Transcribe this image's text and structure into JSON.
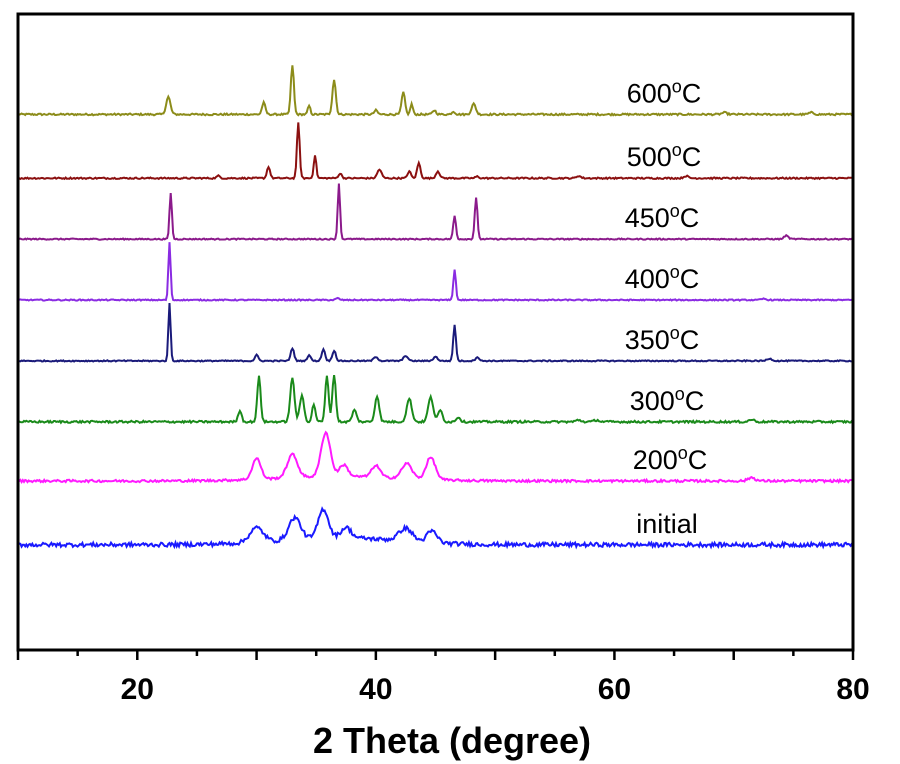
{
  "chart_data": {
    "type": "line",
    "xlabel": "2 Theta (degree)",
    "ylabel": "",
    "xlim": [
      10,
      80
    ],
    "xticks": [
      20,
      40,
      60,
      80
    ],
    "yticks": false,
    "grid": false,
    "legend": "inline labels to the right of each trace",
    "series": [
      {
        "name": "600°C",
        "label_main": "600",
        "label_sup": "o",
        "label_unit": "C",
        "color": "#8c8c1a",
        "offset": 8.2,
        "noise": 0.03,
        "base": 0,
        "bump": 0,
        "peaks": [
          [
            22.6,
            0.3,
            0.25
          ],
          [
            30.6,
            0.2,
            0.2
          ],
          [
            33.0,
            0.85,
            0.18
          ],
          [
            34.4,
            0.15,
            0.15
          ],
          [
            36.5,
            0.6,
            0.2
          ],
          [
            40.0,
            0.07,
            0.2
          ],
          [
            42.3,
            0.38,
            0.2
          ],
          [
            43.0,
            0.18,
            0.15
          ],
          [
            44.9,
            0.07,
            0.2
          ],
          [
            46.5,
            0.05,
            0.2
          ],
          [
            48.2,
            0.18,
            0.25
          ],
          [
            69.2,
            0.03,
            0.3
          ],
          [
            76.5,
            0.03,
            0.3
          ]
        ]
      },
      {
        "name": "500°C",
        "label_main": "500",
        "label_sup": "o",
        "label_unit": "C",
        "color": "#8b1010",
        "offset": 7.1,
        "noise": 0.025,
        "base": 0,
        "bump": 0,
        "peaks": [
          [
            26.8,
            0.04,
            0.2
          ],
          [
            31.0,
            0.2,
            0.18
          ],
          [
            33.5,
            0.95,
            0.16
          ],
          [
            34.9,
            0.4,
            0.15
          ],
          [
            37.0,
            0.08,
            0.2
          ],
          [
            40.3,
            0.15,
            0.25
          ],
          [
            42.8,
            0.12,
            0.2
          ],
          [
            43.6,
            0.26,
            0.2
          ],
          [
            45.2,
            0.12,
            0.22
          ],
          [
            48.5,
            0.03,
            0.2
          ],
          [
            57.0,
            0.04,
            0.25
          ],
          [
            66.0,
            0.04,
            0.25
          ]
        ]
      },
      {
        "name": "450°C",
        "label_main": "450",
        "label_sup": "o",
        "label_unit": "C",
        "color": "#8b1a8b",
        "offset": 6.05,
        "noise": 0.02,
        "base": 0,
        "bump": 0,
        "peaks": [
          [
            22.8,
            0.8,
            0.14
          ],
          [
            36.9,
            0.95,
            0.14
          ],
          [
            46.6,
            0.4,
            0.16
          ],
          [
            48.4,
            0.72,
            0.16
          ],
          [
            74.4,
            0.06,
            0.25
          ]
        ]
      },
      {
        "name": "400°C",
        "label_main": "400",
        "label_sup": "o",
        "label_unit": "C",
        "color": "#8a2be2",
        "offset": 5.0,
        "noise": 0.02,
        "base": 0,
        "bump": 0,
        "peaks": [
          [
            22.7,
            1.0,
            0.13
          ],
          [
            36.8,
            0.03,
            0.2
          ],
          [
            46.6,
            0.52,
            0.15
          ],
          [
            72.5,
            0.02,
            0.3
          ]
        ]
      },
      {
        "name": "350°C",
        "label_main": "350",
        "label_sup": "o",
        "label_unit": "C",
        "color": "#1a1a7a",
        "offset": 3.95,
        "noise": 0.02,
        "base": 0,
        "bump": 0,
        "peaks": [
          [
            22.7,
            1.0,
            0.13
          ],
          [
            30.0,
            0.1,
            0.2
          ],
          [
            33.0,
            0.22,
            0.2
          ],
          [
            34.4,
            0.1,
            0.2
          ],
          [
            35.6,
            0.2,
            0.2
          ],
          [
            36.5,
            0.18,
            0.2
          ],
          [
            40.0,
            0.07,
            0.25
          ],
          [
            42.5,
            0.09,
            0.25
          ],
          [
            45.0,
            0.07,
            0.25
          ],
          [
            46.6,
            0.62,
            0.16
          ],
          [
            48.5,
            0.07,
            0.2
          ],
          [
            73.0,
            0.04,
            0.3
          ]
        ]
      },
      {
        "name": "300°C",
        "label_main": "300",
        "label_sup": "o",
        "label_unit": "C",
        "color": "#1a8a1a",
        "offset": 2.9,
        "noise": 0.035,
        "base": 0,
        "bump": 0,
        "peaks": [
          [
            28.6,
            0.2,
            0.2
          ],
          [
            30.2,
            0.78,
            0.2
          ],
          [
            33.0,
            0.75,
            0.25
          ],
          [
            33.8,
            0.45,
            0.25
          ],
          [
            34.8,
            0.3,
            0.2
          ],
          [
            35.9,
            0.8,
            0.2
          ],
          [
            36.5,
            0.82,
            0.2
          ],
          [
            38.2,
            0.2,
            0.25
          ],
          [
            40.1,
            0.45,
            0.25
          ],
          [
            42.8,
            0.4,
            0.3
          ],
          [
            44.6,
            0.42,
            0.3
          ],
          [
            45.4,
            0.2,
            0.25
          ],
          [
            46.9,
            0.08,
            0.25
          ],
          [
            57.0,
            0.03,
            0.3
          ],
          [
            58.5,
            0.03,
            0.3
          ],
          [
            71.5,
            0.04,
            0.3
          ]
        ]
      },
      {
        "name": "200°C",
        "label_main": "200",
        "label_sup": "o",
        "label_unit": "C",
        "color": "#ff1aff",
        "offset": 1.88,
        "noise": 0.04,
        "base": 0.0,
        "bump": 0.08,
        "peaks": [
          [
            30.0,
            0.36,
            0.5
          ],
          [
            33.0,
            0.4,
            0.6
          ],
          [
            35.8,
            0.76,
            0.55
          ],
          [
            37.3,
            0.2,
            0.5
          ],
          [
            40.0,
            0.2,
            0.5
          ],
          [
            42.6,
            0.26,
            0.6
          ],
          [
            44.6,
            0.38,
            0.55
          ],
          [
            71.5,
            0.06,
            0.4
          ]
        ]
      },
      {
        "name": "initial",
        "label_main": "initial",
        "label_sup": "",
        "label_unit": "",
        "color": "#1a1aff",
        "offset": 0.78,
        "noise": 0.07,
        "base": 0.0,
        "bump": 0.12,
        "peaks": [
          [
            30.0,
            0.25,
            0.8
          ],
          [
            33.2,
            0.38,
            0.7
          ],
          [
            35.6,
            0.5,
            0.6
          ],
          [
            37.5,
            0.18,
            0.6
          ],
          [
            42.5,
            0.22,
            0.8
          ],
          [
            44.7,
            0.2,
            0.6
          ]
        ]
      }
    ]
  }
}
